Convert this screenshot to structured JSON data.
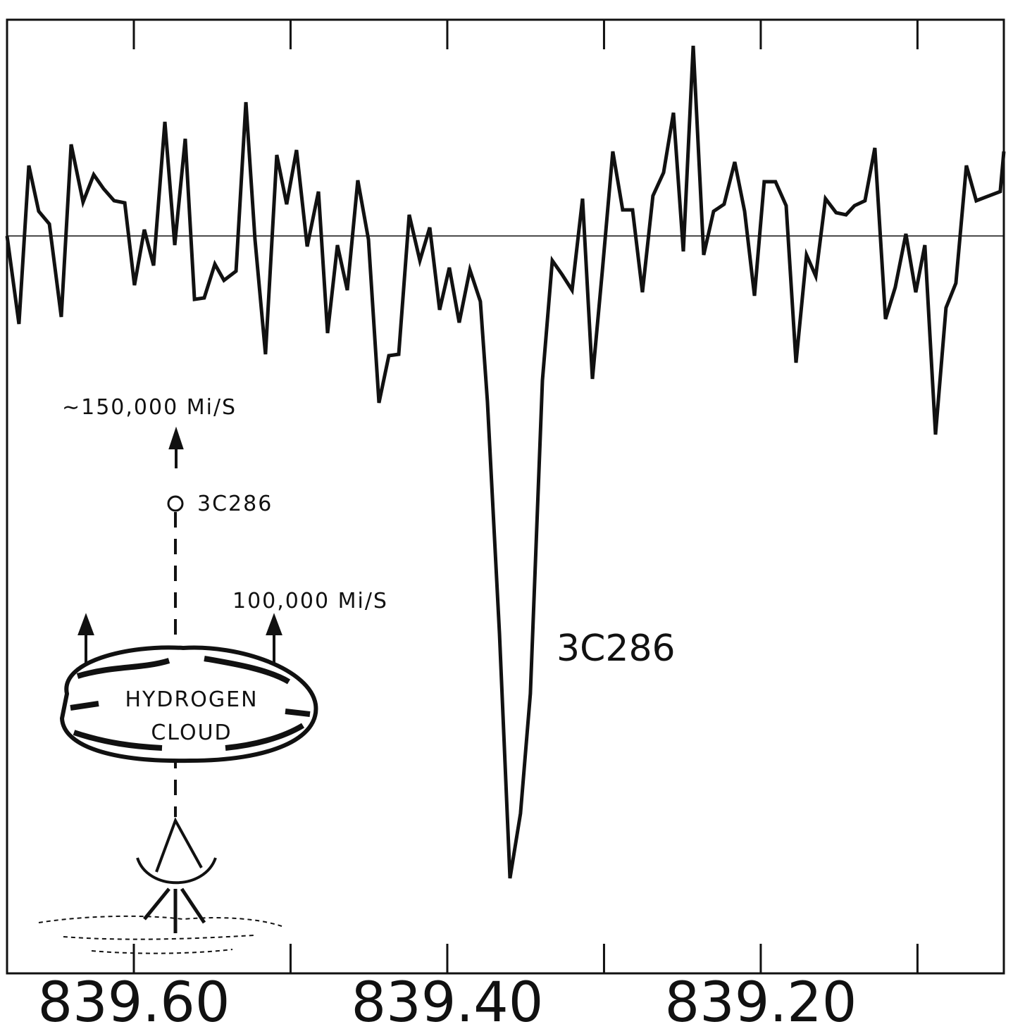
{
  "chart_data": {
    "type": "line",
    "color": "#111111",
    "x": [
      839.6809,
      839.6733,
      839.667,
      839.6607,
      839.6539,
      839.6463,
      839.64,
      839.6324,
      839.6256,
      839.6193,
      839.6126,
      839.6058,
      839.5996,
      839.5933,
      839.5874,
      839.5802,
      839.5739,
      839.5672,
      839.5613,
      839.5551,
      839.5483,
      839.5425,
      839.5348,
      839.5285,
      839.5227,
      839.516,
      839.5088,
      839.5025,
      839.4962,
      839.4894,
      839.4822,
      839.4764,
      839.4701,
      839.4638,
      839.4571,
      839.4503,
      839.4436,
      839.4373,
      839.431,
      839.4243,
      839.4175,
      839.4112,
      839.4049,
      839.3987,
      839.3924,
      839.3856,
      839.3789,
      839.3744,
      839.3667,
      839.36,
      839.3533,
      839.347,
      839.3393,
      839.333,
      839.3267,
      839.3204,
      839.3137,
      839.3074,
      839.3011,
      839.2944,
      839.2881,
      839.2818,
      839.2755,
      839.2688,
      839.262,
      839.2557,
      839.2494,
      839.2431,
      839.2364,
      839.2301,
      839.2234,
      839.2166,
      839.2103,
      839.204,
      839.1978,
      839.1906,
      839.1838,
      839.1775,
      839.1708,
      839.1649,
      839.1587,
      839.1519,
      839.1456,
      839.1402,
      839.1335,
      839.1272,
      839.1204,
      839.1142,
      839.1074,
      839.1011,
      839.0953,
      839.0885,
      839.0818,
      839.0755,
      839.0688,
      839.0625,
      839.0472,
      839.0449
    ],
    "values": [
      0,
      -1.25,
      1.0,
      0.35,
      0.17,
      -1.15,
      1.3,
      0.48,
      0.87,
      0.67,
      0.5,
      0.47,
      -0.7,
      0.09,
      -0.42,
      1.62,
      -0.13,
      1.38,
      -0.9,
      -0.88,
      -0.4,
      -0.63,
      -0.5,
      1.9,
      -0.05,
      -1.68,
      1.15,
      0.45,
      1.22,
      -0.15,
      0.63,
      -1.38,
      -0.13,
      -0.77,
      0.79,
      -0.05,
      -2.37,
      -1.7,
      -1.68,
      0.3,
      -0.35,
      0.12,
      -1.05,
      -0.45,
      -1.23,
      -0.48,
      -0.93,
      -2.35,
      -5.65,
      -9.12,
      -8.2,
      -6.5,
      -2.05,
      -0.35,
      -0.55,
      -0.77,
      0.53,
      -2.03,
      -0.5,
      1.2,
      0.37,
      0.37,
      -0.8,
      0.57,
      0.9,
      1.75,
      -0.22,
      2.7,
      -0.27,
      0.35,
      0.45,
      1.05,
      0.35,
      -0.85,
      0.77,
      0.77,
      0.43,
      -1.8,
      -0.27,
      -0.57,
      0.53,
      0.33,
      0.3,
      0.43,
      0.5,
      1.25,
      -1.18,
      -0.73,
      0.03,
      -0.8,
      -0.13,
      -2.82,
      -1.02,
      -0.67,
      1.0,
      0.5,
      0.63,
      1.2
    ],
    "xlim": [
      839.6809,
      839.0449
    ],
    "ylim": [
      -10.47,
      3.07
    ],
    "xticks": [
      {
        "value": 839.6,
        "label": "839.60"
      },
      {
        "value": 839.4,
        "label": "839.40"
      },
      {
        "value": 839.2,
        "label": "839.20"
      }
    ],
    "xminorticks": [
      839.5,
      839.3,
      839.1
    ],
    "reference_line": 0,
    "annotations": [
      "3C286",
      "∼150,000 Mi/S",
      "3C286",
      "100,000 Mi/S",
      "HYDROGEN",
      "CLOUD"
    ]
  }
}
